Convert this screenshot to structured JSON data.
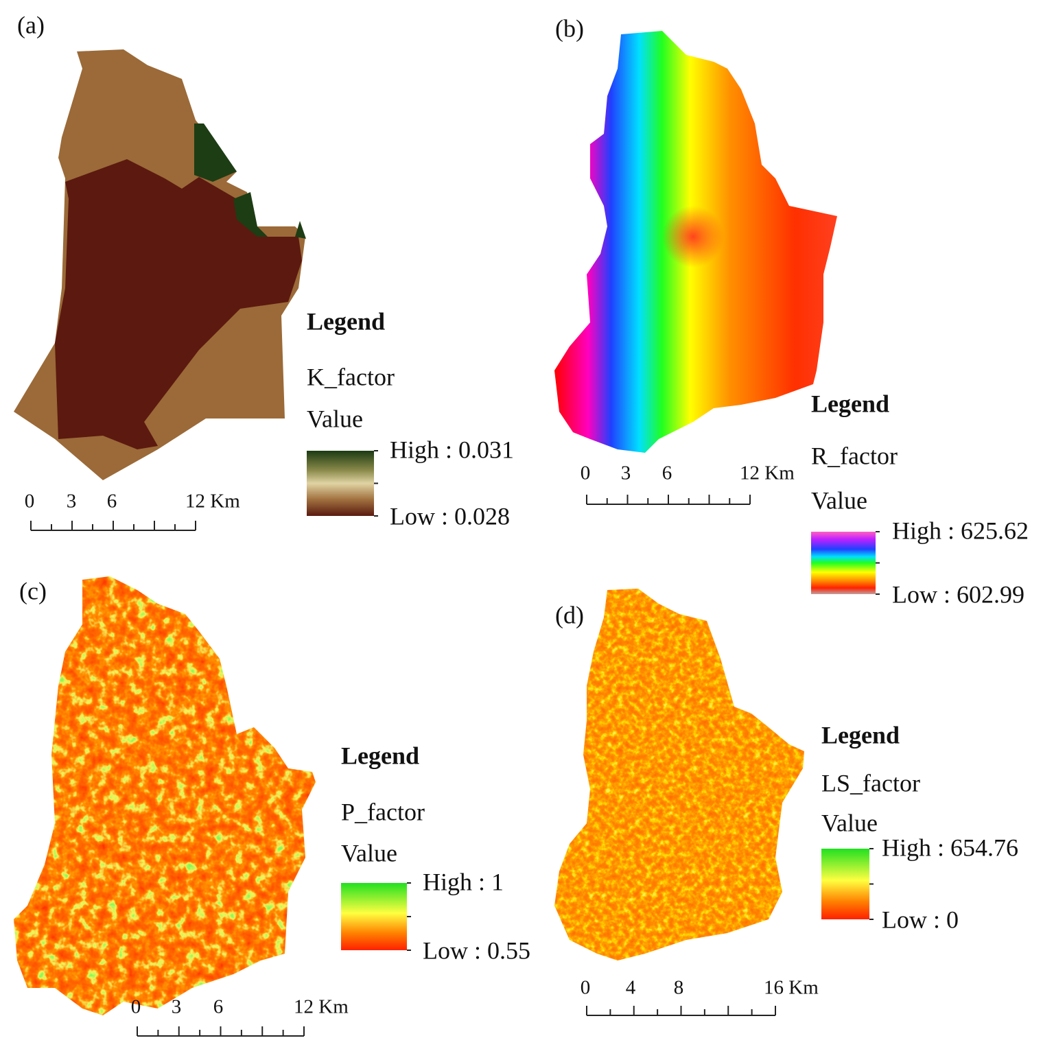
{
  "panels": [
    {
      "label": "(a)",
      "legend": {
        "title": "Legend",
        "layer": "K_factor",
        "field": "Value",
        "high": "High : 0.031",
        "low": "Low : 0.028"
      },
      "scale": [
        "0",
        "3",
        "6",
        "12 Km"
      ]
    },
    {
      "label": "(b)",
      "legend": {
        "title": "Legend",
        "layer": "R_factor",
        "field": "Value",
        "high": "High : 625.62",
        "low": "Low : 602.99"
      },
      "scale": [
        "0",
        "3",
        "6",
        "12 Km"
      ]
    },
    {
      "label": "(c)",
      "legend": {
        "title": "Legend",
        "layer": "P_factor",
        "field": "Value",
        "high": "High : 1",
        "low": "Low : 0.55"
      },
      "scale": [
        "0",
        "3",
        "6",
        "12 Km"
      ]
    },
    {
      "label": "(d)",
      "legend": {
        "title": "Legend",
        "layer": "LS_factor",
        "field": "Value",
        "high": "High : 654.76",
        "low": "Low : 0"
      },
      "scale": [
        "0",
        "4",
        "8",
        "16 Km"
      ]
    }
  ]
}
